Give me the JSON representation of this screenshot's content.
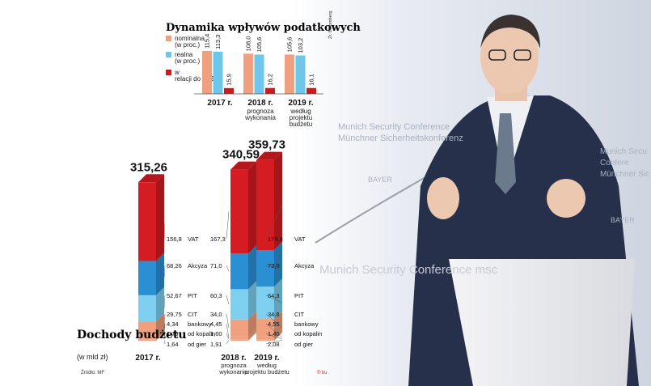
{
  "source_top": "Źr. Bloomberg",
  "source_bottom": "Źródło: MF",
  "credit": "© ku",
  "photo": {
    "texts": [
      "Munich Security Conference",
      "Münchner Sicherheitskonferenz",
      "BAYER",
      "Munich Security Conference msc",
      "Munich Secu",
      "Confere",
      "Münchner Sic",
      "BAYER"
    ]
  },
  "colors": {
    "nominal": "#f0a07e",
    "real": "#6ec6ea",
    "gdp": "#cc1a1f",
    "vat": "#d41c22",
    "akcyza": "#2b8fd3",
    "pit": "#7fd0f0",
    "cit": "#f0a07e"
  },
  "chart_data": [
    {
      "type": "bar",
      "title": "Dynamika wpływów podatkowych",
      "categories": [
        "2017 r.",
        "2018 r.",
        "2019 r."
      ],
      "category_sublabels": [
        "",
        "prognoza wykonania",
        "według projektu budżetu"
      ],
      "series": [
        {
          "name": "nominalna (w proc.)",
          "values": [
            115.4,
            108.0,
            105.6
          ]
        },
        {
          "name": "realna (w proc.)",
          "values": [
            113.3,
            105.6,
            103.2
          ]
        },
        {
          "name": "w relacji do PKB",
          "values": [
            15.9,
            16.2,
            16.1
          ]
        }
      ],
      "value_labels": [
        [
          "115,4",
          "113,3",
          "15,9"
        ],
        [
          "108,0",
          "105,6",
          "16,2"
        ],
        [
          "105,6",
          "103,2",
          "16,1"
        ]
      ],
      "legend_placement": "left"
    },
    {
      "type": "bar",
      "stacked": true,
      "title": "Dochody budżetu",
      "subtitle": "(w mld zł)",
      "categories": [
        "2017 r.",
        "2018 r.",
        "2019 r."
      ],
      "category_sublabels": [
        "",
        "prognoza wykonania",
        "według projektu budżetu"
      ],
      "totals": [
        315.26,
        340.59,
        359.73
      ],
      "total_labels": [
        "315,26",
        "340,59",
        "359,73"
      ],
      "series": [
        {
          "name": "VAT",
          "values": [
            156.8,
            167.3,
            179.6
          ]
        },
        {
          "name": "Akcyza",
          "values": [
            68.26,
            71.0,
            73.0
          ]
        },
        {
          "name": "PIT",
          "values": [
            52.67,
            60.3,
            64.3
          ]
        },
        {
          "name": "CIT",
          "values": [
            29.75,
            34.0,
            34.8
          ]
        },
        {
          "name": "bankowy",
          "values": [
            4.34,
            4.45,
            4.55
          ]
        },
        {
          "name": "od kopalin",
          "values": [
            1.79,
            1.6,
            1.4
          ]
        },
        {
          "name": "od gier",
          "values": [
            1.64,
            1.91,
            2.08
          ]
        }
      ],
      "value_labels": [
        [
          "156,8",
          "68,26",
          "52,67",
          "29,75",
          "4,34",
          "1,79",
          "1,64"
        ],
        [
          "167,3",
          "71,0",
          "60,3",
          "34,0",
          "4,45",
          "1,60",
          "1,91"
        ],
        [
          "179,6",
          "73,0",
          "64,3",
          "34,8",
          "4,55",
          "1,40",
          "2,08"
        ]
      ]
    }
  ]
}
